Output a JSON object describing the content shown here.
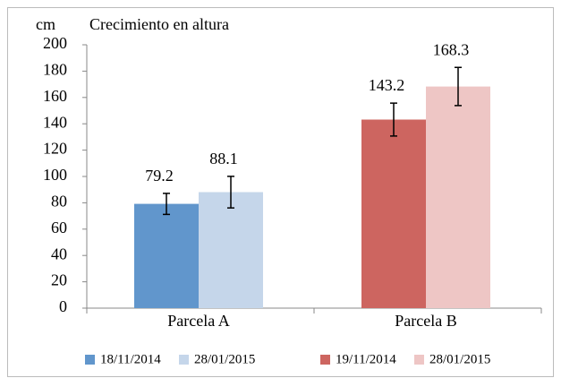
{
  "chart_data": {
    "type": "bar",
    "title": "Crecimiento en altura",
    "y_label": "cm",
    "categories": [
      "Parcela A",
      "Parcela B"
    ],
    "series": [
      {
        "name": "18/11/2014",
        "color": "#6196cc",
        "values": [
          79.2,
          null
        ],
        "errors": [
          8,
          null
        ]
      },
      {
        "name": "28/01/2015",
        "color": "#c5d6ea",
        "values": [
          88.1,
          null
        ],
        "errors": [
          12,
          null
        ]
      },
      {
        "name": "19/11/2014",
        "color": "#cd6560",
        "values": [
          null,
          143.2
        ],
        "errors": [
          null,
          12.5
        ]
      },
      {
        "name": "28/01/2015",
        "color": "#eec6c5",
        "values": [
          null,
          168.3
        ],
        "errors": [
          null,
          14.5
        ]
      }
    ],
    "ylim": [
      0,
      200
    ],
    "yticks": [
      0,
      20,
      40,
      60,
      80,
      100,
      120,
      140,
      160,
      180,
      200
    ],
    "grid": false,
    "legend": "bottom"
  }
}
